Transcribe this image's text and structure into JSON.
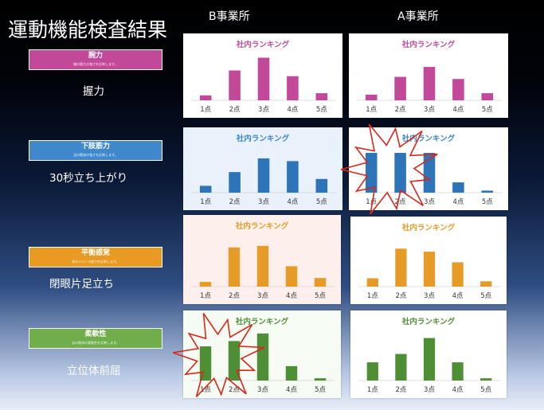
{
  "title": "運動機能検査結果",
  "columns": [
    "B事業所",
    "A事業所"
  ],
  "rows": [
    {
      "category": "腕力",
      "category_sub": "腕の筋力の強さを反映します。",
      "test": "握力",
      "badge_color": "#c2489a",
      "bar_color": "#c2489a",
      "title_color": "#c2489a",
      "panel_bg_b": "#ffffff",
      "panel_bg_a": "#ffffff"
    },
    {
      "category": "下肢筋力",
      "category_sub": "足の筋肉の強さを反映します。",
      "test": "30秒立ち上がり",
      "badge_color": "#3f88cc",
      "bar_color": "#2e74b8",
      "title_color": "#3a86cc",
      "panel_bg_b": "#e9f1fb",
      "panel_bg_a": "#ffffff"
    },
    {
      "category": "平衡感覚",
      "category_sub": "体のバランス能力を反映します。",
      "test": "閉眼片足立ち",
      "badge_color": "#e89a22",
      "bar_color": "#e59b26",
      "title_color": "#e59b26",
      "panel_bg_b": "#fdf0ec",
      "panel_bg_a": "#ffffff"
    },
    {
      "category": "柔軟性",
      "category_sub": "足の筋肉の柔軟性を反映します。",
      "test": "立位体前屈",
      "badge_color": "#6fae4a",
      "bar_color": "#4e8f36",
      "title_color": "#4e8f36",
      "panel_bg_b": "#f6fbf3",
      "panel_bg_a": "#ffffff"
    }
  ],
  "chart_data": [
    {
      "type": "bar",
      "office": "B事業所",
      "test": "握力",
      "title": "社内ランキング",
      "categories": [
        "1点",
        "2点",
        "3点",
        "4点",
        "5点"
      ],
      "values": [
        7,
        42,
        60,
        34,
        10
      ],
      "ylim": [
        0,
        65
      ]
    },
    {
      "type": "bar",
      "office": "A事業所",
      "test": "握力",
      "title": "社内ランキング",
      "categories": [
        "1点",
        "2点",
        "3点",
        "4点",
        "5点"
      ],
      "values": [
        8,
        33,
        47,
        30,
        10
      ],
      "ylim": [
        0,
        65
      ]
    },
    {
      "type": "bar",
      "office": "B事業所",
      "test": "30秒立ち上がり",
      "title": "社内ランキング",
      "categories": [
        "1点",
        "2点",
        "3点",
        "4点",
        "5点"
      ],
      "values": [
        10,
        30,
        50,
        46,
        20
      ],
      "ylim": [
        0,
        65
      ]
    },
    {
      "type": "bar",
      "office": "A事業所",
      "test": "30秒立ち上がり",
      "title": "社内ランキング",
      "categories": [
        "1点",
        "2点",
        "3点",
        "4点",
        "5点"
      ],
      "values": [
        58,
        58,
        58,
        15,
        3
      ],
      "ylim": [
        0,
        65
      ]
    },
    {
      "type": "bar",
      "office": "B事業所",
      "test": "閉眼片足立ち",
      "title": "社内ランキング",
      "categories": [
        "1点",
        "2点",
        "3点",
        "4点",
        "5点"
      ],
      "values": [
        6,
        50,
        52,
        26,
        11
      ],
      "ylim": [
        0,
        65
      ]
    },
    {
      "type": "bar",
      "office": "A事業所",
      "test": "閉眼片足立ち",
      "title": "社内ランキング",
      "categories": [
        "1点",
        "2点",
        "3点",
        "4点",
        "5点"
      ],
      "values": [
        11,
        50,
        46,
        32,
        7
      ],
      "ylim": [
        0,
        65
      ]
    },
    {
      "type": "bar",
      "office": "B事業所",
      "test": "立位体前屈",
      "title": "社内ランキング",
      "categories": [
        "1点",
        "2点",
        "3点",
        "4点",
        "5点"
      ],
      "values": [
        45,
        52,
        62,
        19,
        3
      ],
      "ylim": [
        0,
        65
      ]
    },
    {
      "type": "bar",
      "office": "A事業所",
      "test": "立位体前屈",
      "title": "社内ランキング",
      "categories": [
        "1点",
        "2点",
        "3点",
        "4点",
        "5点"
      ],
      "values": [
        24,
        35,
        56,
        24,
        3
      ],
      "ylim": [
        0,
        65
      ]
    }
  ]
}
